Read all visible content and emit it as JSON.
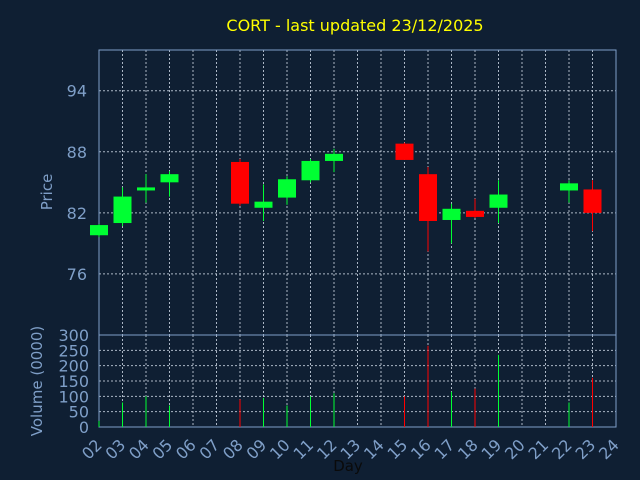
{
  "chart_data": {
    "type": "candlestick",
    "title": "CORT - last updated 23/12/2025",
    "xlabel": "Day",
    "price_ylabel": "Price",
    "volume_ylabel": "Volume (0000)",
    "x_ticks": [
      "02",
      "03",
      "04",
      "05",
      "06",
      "07",
      "08",
      "09",
      "10",
      "11",
      "12",
      "13",
      "14",
      "15",
      "16",
      "17",
      "18",
      "19",
      "20",
      "21",
      "22",
      "23",
      "24"
    ],
    "price_yticks": [
      76,
      82,
      88,
      94
    ],
    "price_ylim": [
      70,
      98
    ],
    "volume_yticks": [
      0,
      50,
      100,
      150,
      200,
      250,
      300
    ],
    "volume_ylim": [
      0,
      300
    ],
    "grid": true,
    "colors": {
      "up": "#00ff33",
      "down": "#ff0000",
      "background": "#0f1f33",
      "title": "#ffff00",
      "axis": "#7f9fc8"
    },
    "candles": [
      {
        "day": "02",
        "open": 79.8,
        "high": 80.9,
        "low": 79.6,
        "close": 80.8,
        "volume": 20
      },
      {
        "day": "03",
        "open": 81.0,
        "high": 84.5,
        "low": 80.7,
        "close": 83.6,
        "volume": 80
      },
      {
        "day": "04",
        "open": 84.2,
        "high": 85.8,
        "low": 83.0,
        "close": 84.5,
        "volume": 100
      },
      {
        "day": "05",
        "open": 85.0,
        "high": 86.1,
        "low": 83.6,
        "close": 85.8,
        "volume": 70
      },
      {
        "day": "08",
        "open": 87.0,
        "high": 87.3,
        "low": 82.7,
        "close": 82.9,
        "volume": 90
      },
      {
        "day": "09",
        "open": 82.5,
        "high": 84.8,
        "low": 81.2,
        "close": 83.1,
        "volume": 95
      },
      {
        "day": "10",
        "open": 83.5,
        "high": 85.6,
        "low": 82.8,
        "close": 85.3,
        "volume": 70
      },
      {
        "day": "11",
        "open": 85.2,
        "high": 87.3,
        "low": 85.0,
        "close": 87.1,
        "volume": 100
      },
      {
        "day": "12",
        "open": 87.1,
        "high": 88.3,
        "low": 86.0,
        "close": 87.8,
        "volume": 110
      },
      {
        "day": "15",
        "open": 88.8,
        "high": 88.9,
        "low": 87.2,
        "close": 87.2,
        "volume": 100
      },
      {
        "day": "16",
        "open": 85.8,
        "high": 86.5,
        "low": 78.2,
        "close": 81.2,
        "volume": 265
      },
      {
        "day": "17",
        "open": 81.3,
        "high": 82.9,
        "low": 79.0,
        "close": 82.4,
        "volume": 115
      },
      {
        "day": "18",
        "open": 82.2,
        "high": 83.4,
        "low": 81.5,
        "close": 81.6,
        "volume": 125
      },
      {
        "day": "19",
        "open": 82.5,
        "high": 85.2,
        "low": 81.0,
        "close": 83.8,
        "volume": 235
      },
      {
        "day": "22",
        "open": 84.2,
        "high": 85.2,
        "low": 83.0,
        "close": 84.9,
        "volume": 80
      },
      {
        "day": "23",
        "open": 84.3,
        "high": 85.2,
        "low": 80.2,
        "close": 82.0,
        "volume": 160
      }
    ]
  }
}
